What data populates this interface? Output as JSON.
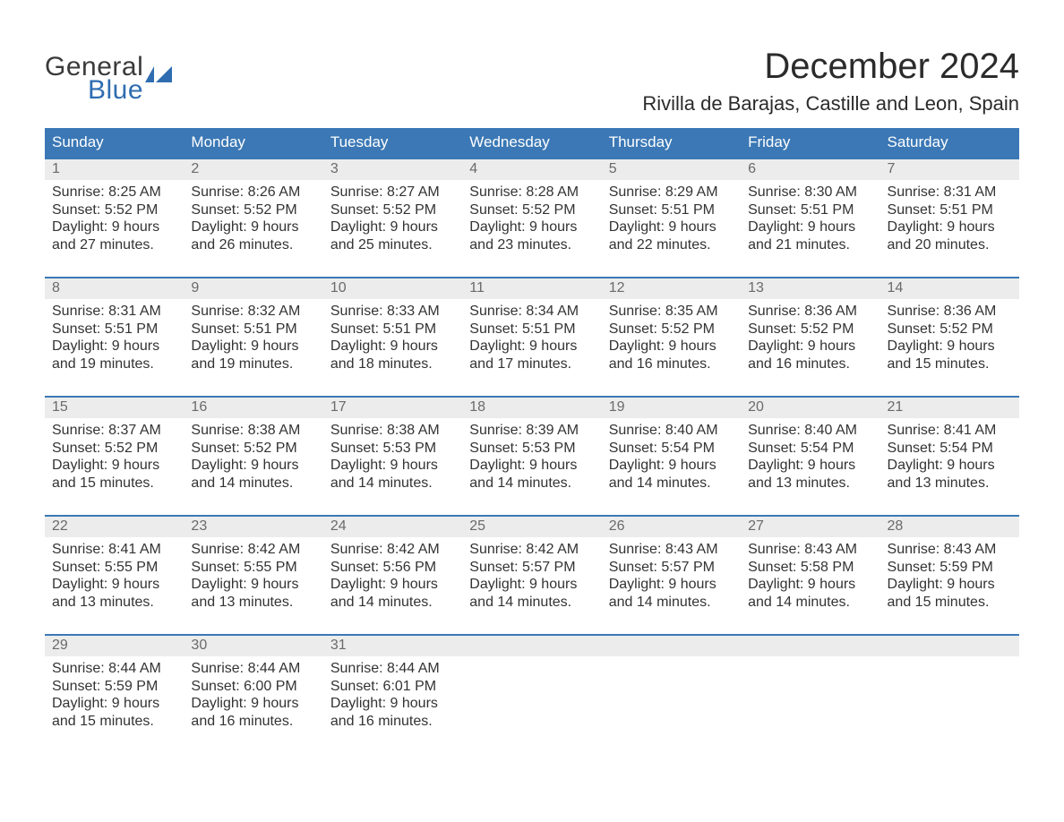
{
  "logo": {
    "word1": "General",
    "word2": "Blue",
    "mark_color": "#2f6db0"
  },
  "title": "December 2024",
  "location": "Rivilla de Barajas, Castille and Leon, Spain",
  "colors": {
    "header_bg": "#3b78b5",
    "header_text": "#ffffff",
    "week_border": "#3b78b5",
    "daynum_bg": "#ececec",
    "daynum_text": "#6a6a6a",
    "body_text": "#333333",
    "page_bg": "#ffffff"
  },
  "typography": {
    "title_fontsize": 40,
    "location_fontsize": 22,
    "dayheader_fontsize": 17,
    "daynum_fontsize": 16,
    "cell_fontsize": 16
  },
  "day_names": [
    "Sunday",
    "Monday",
    "Tuesday",
    "Wednesday",
    "Thursday",
    "Friday",
    "Saturday"
  ],
  "labels": {
    "sunrise": "Sunrise",
    "sunset": "Sunset",
    "daylight": "Daylight"
  },
  "weeks": [
    [
      {
        "day": 1,
        "sunrise": "8:25 AM",
        "sunset": "5:52 PM",
        "daylight": "9 hours and 27 minutes."
      },
      {
        "day": 2,
        "sunrise": "8:26 AM",
        "sunset": "5:52 PM",
        "daylight": "9 hours and 26 minutes."
      },
      {
        "day": 3,
        "sunrise": "8:27 AM",
        "sunset": "5:52 PM",
        "daylight": "9 hours and 25 minutes."
      },
      {
        "day": 4,
        "sunrise": "8:28 AM",
        "sunset": "5:52 PM",
        "daylight": "9 hours and 23 minutes."
      },
      {
        "day": 5,
        "sunrise": "8:29 AM",
        "sunset": "5:51 PM",
        "daylight": "9 hours and 22 minutes."
      },
      {
        "day": 6,
        "sunrise": "8:30 AM",
        "sunset": "5:51 PM",
        "daylight": "9 hours and 21 minutes."
      },
      {
        "day": 7,
        "sunrise": "8:31 AM",
        "sunset": "5:51 PM",
        "daylight": "9 hours and 20 minutes."
      }
    ],
    [
      {
        "day": 8,
        "sunrise": "8:31 AM",
        "sunset": "5:51 PM",
        "daylight": "9 hours and 19 minutes."
      },
      {
        "day": 9,
        "sunrise": "8:32 AM",
        "sunset": "5:51 PM",
        "daylight": "9 hours and 19 minutes."
      },
      {
        "day": 10,
        "sunrise": "8:33 AM",
        "sunset": "5:51 PM",
        "daylight": "9 hours and 18 minutes."
      },
      {
        "day": 11,
        "sunrise": "8:34 AM",
        "sunset": "5:51 PM",
        "daylight": "9 hours and 17 minutes."
      },
      {
        "day": 12,
        "sunrise": "8:35 AM",
        "sunset": "5:52 PM",
        "daylight": "9 hours and 16 minutes."
      },
      {
        "day": 13,
        "sunrise": "8:36 AM",
        "sunset": "5:52 PM",
        "daylight": "9 hours and 16 minutes."
      },
      {
        "day": 14,
        "sunrise": "8:36 AM",
        "sunset": "5:52 PM",
        "daylight": "9 hours and 15 minutes."
      }
    ],
    [
      {
        "day": 15,
        "sunrise": "8:37 AM",
        "sunset": "5:52 PM",
        "daylight": "9 hours and 15 minutes."
      },
      {
        "day": 16,
        "sunrise": "8:38 AM",
        "sunset": "5:52 PM",
        "daylight": "9 hours and 14 minutes."
      },
      {
        "day": 17,
        "sunrise": "8:38 AM",
        "sunset": "5:53 PM",
        "daylight": "9 hours and 14 minutes."
      },
      {
        "day": 18,
        "sunrise": "8:39 AM",
        "sunset": "5:53 PM",
        "daylight": "9 hours and 14 minutes."
      },
      {
        "day": 19,
        "sunrise": "8:40 AM",
        "sunset": "5:54 PM",
        "daylight": "9 hours and 14 minutes."
      },
      {
        "day": 20,
        "sunrise": "8:40 AM",
        "sunset": "5:54 PM",
        "daylight": "9 hours and 13 minutes."
      },
      {
        "day": 21,
        "sunrise": "8:41 AM",
        "sunset": "5:54 PM",
        "daylight": "9 hours and 13 minutes."
      }
    ],
    [
      {
        "day": 22,
        "sunrise": "8:41 AM",
        "sunset": "5:55 PM",
        "daylight": "9 hours and 13 minutes."
      },
      {
        "day": 23,
        "sunrise": "8:42 AM",
        "sunset": "5:55 PM",
        "daylight": "9 hours and 13 minutes."
      },
      {
        "day": 24,
        "sunrise": "8:42 AM",
        "sunset": "5:56 PM",
        "daylight": "9 hours and 14 minutes."
      },
      {
        "day": 25,
        "sunrise": "8:42 AM",
        "sunset": "5:57 PM",
        "daylight": "9 hours and 14 minutes."
      },
      {
        "day": 26,
        "sunrise": "8:43 AM",
        "sunset": "5:57 PM",
        "daylight": "9 hours and 14 minutes."
      },
      {
        "day": 27,
        "sunrise": "8:43 AM",
        "sunset": "5:58 PM",
        "daylight": "9 hours and 14 minutes."
      },
      {
        "day": 28,
        "sunrise": "8:43 AM",
        "sunset": "5:59 PM",
        "daylight": "9 hours and 15 minutes."
      }
    ],
    [
      {
        "day": 29,
        "sunrise": "8:44 AM",
        "sunset": "5:59 PM",
        "daylight": "9 hours and 15 minutes."
      },
      {
        "day": 30,
        "sunrise": "8:44 AM",
        "sunset": "6:00 PM",
        "daylight": "9 hours and 16 minutes."
      },
      {
        "day": 31,
        "sunrise": "8:44 AM",
        "sunset": "6:01 PM",
        "daylight": "9 hours and 16 minutes."
      },
      null,
      null,
      null,
      null
    ]
  ]
}
